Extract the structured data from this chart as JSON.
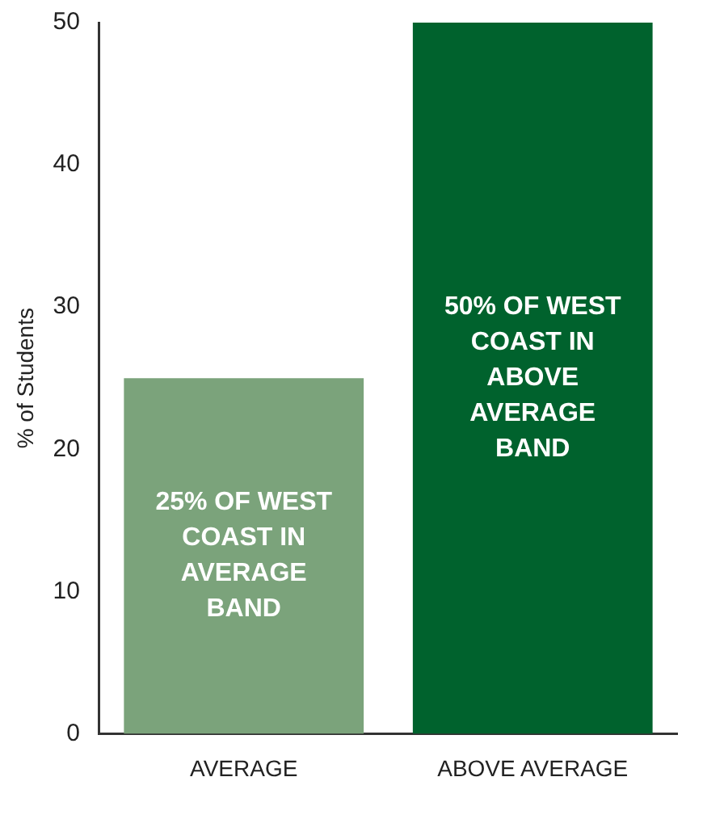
{
  "chart_data": {
    "type": "bar",
    "ylabel": "% of Students",
    "categories": [
      "AVERAGE",
      "ABOVE AVERAGE"
    ],
    "values": [
      25,
      50
    ],
    "colors": [
      "#7ba37b",
      "#00622d"
    ],
    "value_labels": [
      "25% OF WEST COAST IN AVERAGE BAND",
      "50% OF WEST COAST IN ABOVE AVERAGE BAND"
    ],
    "ylim": [
      0,
      50
    ],
    "yticks": [
      0,
      10,
      20,
      30,
      40,
      50
    ],
    "grid": false,
    "legend": false
  }
}
